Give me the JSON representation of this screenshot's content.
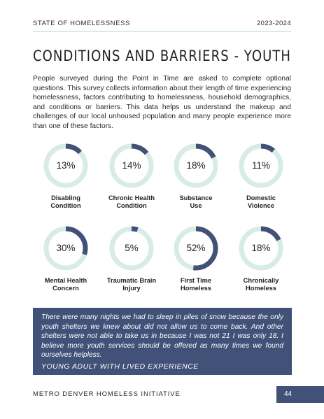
{
  "header": {
    "left": "STATE OF HOMELESSNESS",
    "right": "2023-2024"
  },
  "title": "CONDITIONS AND BARRIERS - YOUTH",
  "intro": "People surveyed during the Point in Time are asked to complete optional questions. This survey collects information about their length of time experiencing homelessness, factors contributing to homelessness, household demographics, and conditions or barriers. This data helps us understand the makeup and challenges of our local unhoused population and many people experience more than one of these factors.",
  "colors": {
    "accent": "#415178",
    "track": "#d8ece6"
  },
  "stats": [
    {
      "percent_text": "13%",
      "value": 13,
      "label_line1": "Disabling",
      "label_line2": "Condition"
    },
    {
      "percent_text": "14%",
      "value": 14,
      "label_line1": "Chronic Health",
      "label_line2": "Condition"
    },
    {
      "percent_text": "18%",
      "value": 18,
      "label_line1": "Substance",
      "label_line2": "Use"
    },
    {
      "percent_text": "11%",
      "value": 11,
      "label_line1": "Domestic",
      "label_line2": "Violence"
    },
    {
      "percent_text": "30%",
      "value": 30,
      "label_line1": "Mental Health",
      "label_line2": "Concern"
    },
    {
      "percent_text": "5%",
      "value": 5,
      "label_line1": "Traumatic Brain",
      "label_line2": "Injury"
    },
    {
      "percent_text": "52%",
      "value": 52,
      "label_line1": "First Time",
      "label_line2": "Homeless"
    },
    {
      "percent_text": "18%",
      "value": 18,
      "label_line1": "Chronically",
      "label_line2": "Homeless"
    }
  ],
  "quote": {
    "text": "There were many nights we had to sleep in piles of snow because the only youth shelters we knew about did not allow us to come back. And other shelters were not able to take us in because I was not 21 I was only 18. I believe more youth services should be offered as many times we found ourselves helpless.",
    "attribution": "YOUNG ADULT WITH LIVED EXPERIENCE"
  },
  "footer": {
    "org": "METRO DENVER HOMELESS INITIATIVE",
    "page_number": "44"
  }
}
